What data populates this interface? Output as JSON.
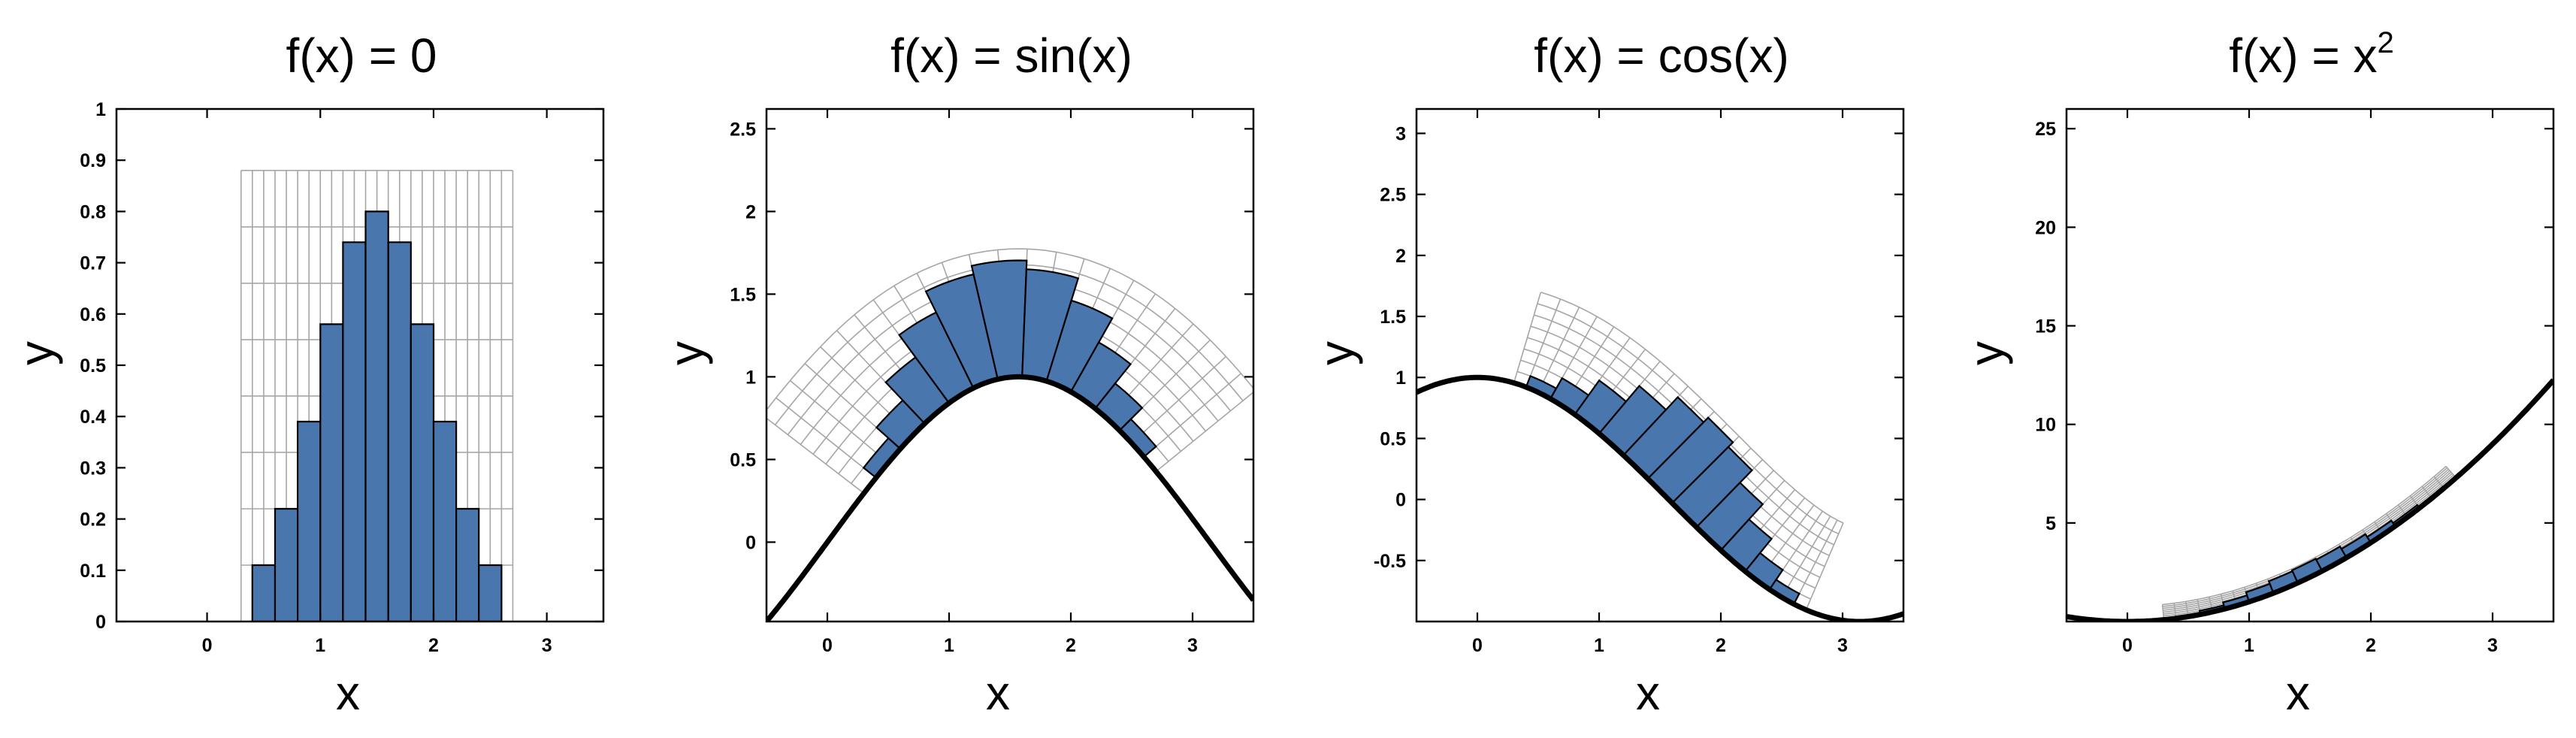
{
  "colors": {
    "bar_fill": "#4a76ae",
    "bar_stroke": "#000000",
    "curve": "#000000",
    "grid": "#a6a6a6",
    "frame": "#000000"
  },
  "chart_data": [
    {
      "type": "bar",
      "title": "f(x) = 0",
      "xlabel": "x",
      "ylabel": "y",
      "xlim": [
        -0.8,
        3.5
      ],
      "ylim": [
        0,
        1
      ],
      "xticks": [
        0,
        1,
        2,
        3
      ],
      "yticks": [
        0,
        0.1,
        0.2,
        0.3,
        0.4,
        0.5,
        0.6,
        0.7,
        0.8,
        0.9,
        1
      ],
      "ytick_labels": [
        "0",
        "0.1",
        "0.2",
        "0.3",
        "0.4",
        "0.5",
        "0.6",
        "0.7",
        "0.8",
        "0.9",
        "1"
      ],
      "baseline": "f(x) = 0",
      "bin_edges": [
        0.4,
        0.6,
        0.8,
        1.0,
        1.2,
        1.4,
        1.6,
        1.8,
        2.0,
        2.2,
        2.4,
        2.6
      ],
      "values": [
        0.11,
        0.22,
        0.39,
        0.58,
        0.74,
        0.8,
        0.74,
        0.58,
        0.39,
        0.22,
        0.11
      ],
      "grid_region": {
        "x": [
          0.3,
          2.7
        ],
        "y": [
          0,
          0.88
        ]
      }
    },
    {
      "type": "bar",
      "title": "f(x) = sin(x)",
      "xlabel": "x",
      "ylabel": "y",
      "xlim": [
        -0.5,
        3.5
      ],
      "ylim": [
        -0.48,
        2.62
      ],
      "xticks": [
        0,
        1,
        2,
        3
      ],
      "yticks": [
        0,
        0.5,
        1,
        1.5,
        2,
        2.5
      ],
      "ytick_labels": [
        "0",
        "0.5",
        "1",
        "1.5",
        "2",
        "2.5"
      ],
      "baseline": "f(x) = sin(x)",
      "bin_edges": [
        0.4,
        0.6,
        0.8,
        1.0,
        1.2,
        1.4,
        1.6,
        1.8,
        2.0,
        2.2,
        2.4,
        2.6
      ],
      "values": [
        0.11,
        0.22,
        0.39,
        0.58,
        0.74,
        0.8,
        0.74,
        0.58,
        0.39,
        0.22,
        0.11
      ],
      "grid_region": {
        "x": [
          0.3,
          2.7
        ],
        "y": [
          0,
          0.88
        ]
      }
    },
    {
      "type": "bar",
      "title": "f(x) = cos(x)",
      "xlabel": "x",
      "ylabel": "y",
      "xlim": [
        -0.5,
        3.5
      ],
      "ylim": [
        -1.0,
        3.2
      ],
      "xticks": [
        0,
        1,
        2,
        3
      ],
      "yticks": [
        -0.5,
        0,
        0.5,
        1,
        1.5,
        2,
        2.5,
        3
      ],
      "ytick_labels": [
        "-0.5",
        "0",
        "0.5",
        "1",
        "1.5",
        "2",
        "2.5",
        "3"
      ],
      "baseline": "f(x) = cos(x)",
      "bin_edges": [
        0.4,
        0.6,
        0.8,
        1.0,
        1.2,
        1.4,
        1.6,
        1.8,
        2.0,
        2.2,
        2.4,
        2.6
      ],
      "values": [
        0.11,
        0.22,
        0.39,
        0.58,
        0.74,
        0.8,
        0.74,
        0.58,
        0.39,
        0.22,
        0.11
      ],
      "grid_region": {
        "x": [
          0.3,
          2.7
        ],
        "y": [
          0,
          0.88
        ]
      }
    },
    {
      "type": "bar",
      "title": "f(x) = x",
      "title_sup": "2",
      "xlabel": "x",
      "ylabel": "y",
      "xlim": [
        -0.5,
        3.5
      ],
      "ylim": [
        0,
        26
      ],
      "xticks": [
        0,
        1,
        2,
        3
      ],
      "yticks": [
        5,
        10,
        15,
        20,
        25
      ],
      "ytick_labels": [
        "5",
        "10",
        "15",
        "20",
        "25"
      ],
      "baseline": "f(x) = x^2",
      "bin_edges": [
        0.4,
        0.6,
        0.8,
        1.0,
        1.2,
        1.4,
        1.6,
        1.8,
        2.0,
        2.2,
        2.4,
        2.6
      ],
      "values": [
        0.11,
        0.22,
        0.39,
        0.58,
        0.74,
        0.8,
        0.74,
        0.58,
        0.39,
        0.22,
        0.11
      ],
      "grid_region": {
        "x": [
          0.3,
          2.7
        ],
        "y": [
          0,
          0.88
        ]
      }
    }
  ]
}
